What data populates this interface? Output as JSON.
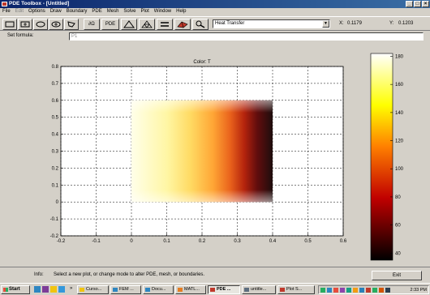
{
  "window": {
    "title": "PDE Toolbox - [Untitled]"
  },
  "menu": [
    "File",
    "Edit",
    "Options",
    "Draw",
    "Boundary",
    "PDE",
    "Mesh",
    "Solve",
    "Plot",
    "Window",
    "Help"
  ],
  "toolbar": {
    "pde_label": "PDE",
    "dn_label": "∂Ω",
    "mode_select": "Heat Transfer",
    "x_label": "X:",
    "x_value": "0.1179",
    "y_label": "Y:",
    "y_value": "0.1203"
  },
  "formula": {
    "label": "Set formula:",
    "value": "P1"
  },
  "chart_data": {
    "type": "heatmap",
    "title": "Color: T",
    "xlim": [
      -0.2,
      0.6
    ],
    "ylim": [
      -0.2,
      0.8
    ],
    "x_ticks": [
      "-0.2",
      "-0.1",
      "0",
      "0.1",
      "0.2",
      "0.3",
      "0.4",
      "0.5",
      "0.6"
    ],
    "y_ticks": [
      "-0.2",
      "-0.1",
      "0",
      "0.1",
      "0.2",
      "0.3",
      "0.4",
      "0.5",
      "0.6",
      "0.7",
      "0.8"
    ],
    "grid": true,
    "domain": {
      "x": [
        0,
        0.4
      ],
      "y": [
        0,
        0.6
      ]
    },
    "colormap": "hot",
    "colorbar_ticks": [
      "40",
      "60",
      "80",
      "100",
      "120",
      "140",
      "160",
      "180"
    ],
    "color_range": [
      35,
      182
    ]
  },
  "info": {
    "label": "Info:",
    "text": "Select a new plot, or change mode to alter PDE, mesh, or boundaries.",
    "exit_label": "Exit"
  },
  "taskbar": {
    "start_label": "Start",
    "more_label": "»",
    "tasks": [
      "Curso...",
      "FEM ...",
      "Docu...",
      "MATL...",
      "PDE ...",
      "untitle...",
      "Plot S..."
    ],
    "clock": "2:33 PM"
  }
}
